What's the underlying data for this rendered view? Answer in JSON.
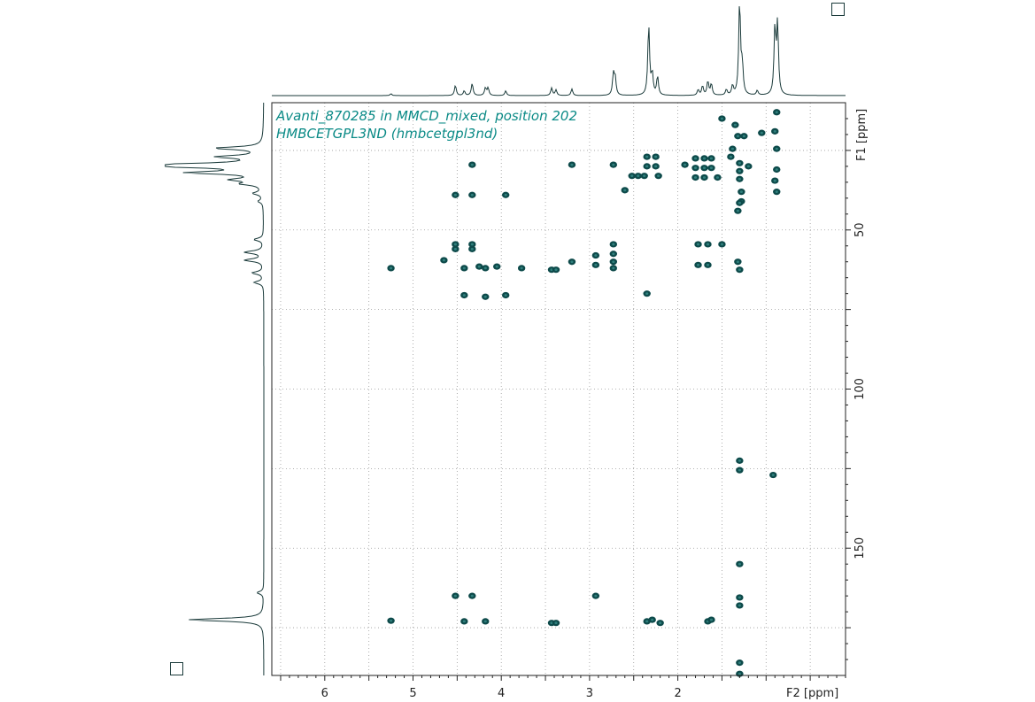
{
  "chart_data": {
    "type": "scatter",
    "subtype": "2D NMR HMBC contour plot",
    "title_lines": [
      "Avanti_870285 in MMCD_mixed, position 202",
      "HMBCETGPL3ND (hmbcetgpl3nd)"
    ],
    "x_axis": {
      "label": "F2 [ppm]",
      "range": [
        6.6,
        0.1
      ],
      "reversed": true,
      "tick_labels": [
        "6",
        "5",
        "4",
        "3",
        "2"
      ]
    },
    "y_axis": {
      "label": "F1 [ppm]",
      "range": [
        10,
        190
      ],
      "reversed": true,
      "position": "right",
      "tick_labels": [
        "50",
        "100",
        "150"
      ]
    },
    "grid": true,
    "colors": {
      "contour": "#0d4a4a",
      "projection": "#1a3a3a",
      "title": "#0a8a86",
      "grid": "#9a9a9a"
    },
    "projection_f2_peaks": [
      {
        "x": 5.25,
        "h": 0.02
      },
      {
        "x": 4.52,
        "h": 0.11
      },
      {
        "x": 4.42,
        "h": 0.05
      },
      {
        "x": 4.33,
        "h": 0.13
      },
      {
        "x": 4.18,
        "h": 0.08
      },
      {
        "x": 4.15,
        "h": 0.08
      },
      {
        "x": 3.95,
        "h": 0.05
      },
      {
        "x": 3.43,
        "h": 0.08
      },
      {
        "x": 3.38,
        "h": 0.06
      },
      {
        "x": 3.2,
        "h": 0.07
      },
      {
        "x": 2.73,
        "h": 0.22
      },
      {
        "x": 2.71,
        "h": 0.18
      },
      {
        "x": 2.33,
        "h": 0.75
      },
      {
        "x": 2.29,
        "h": 0.22
      },
      {
        "x": 2.23,
        "h": 0.2
      },
      {
        "x": 1.77,
        "h": 0.06
      },
      {
        "x": 1.72,
        "h": 0.1
      },
      {
        "x": 1.66,
        "h": 0.15
      },
      {
        "x": 1.62,
        "h": 0.12
      },
      {
        "x": 1.45,
        "h": 0.06
      },
      {
        "x": 1.38,
        "h": 0.1
      },
      {
        "x": 1.3,
        "h": 1.0
      },
      {
        "x": 1.27,
        "h": 0.3
      },
      {
        "x": 1.1,
        "h": 0.05
      },
      {
        "x": 0.9,
        "h": 0.7
      },
      {
        "x": 0.87,
        "h": 0.75
      }
    ],
    "projection_f1_peaks": [
      {
        "y": 24.3,
        "h": 0.5
      },
      {
        "y": 27.0,
        "h": 0.45
      },
      {
        "y": 29.5,
        "h": 0.9
      },
      {
        "y": 30.0,
        "h": 0.85
      },
      {
        "y": 32.0,
        "h": 0.75
      },
      {
        "y": 34.2,
        "h": 0.3
      },
      {
        "y": 35.5,
        "h": 0.2
      },
      {
        "y": 38.5,
        "h": 0.1
      },
      {
        "y": 41.0,
        "h": 0.05
      },
      {
        "y": 53.0,
        "h": 0.1
      },
      {
        "y": 57.0,
        "h": 0.2
      },
      {
        "y": 59.5,
        "h": 0.2
      },
      {
        "y": 63.5,
        "h": 0.12
      },
      {
        "y": 66.5,
        "h": 0.1
      },
      {
        "y": 172.5,
        "h": 0.8
      },
      {
        "y": 164.0,
        "h": 0.07
      }
    ],
    "cross_peaks": [
      {
        "x": 1.5,
        "y": 15.0
      },
      {
        "x": 1.35,
        "y": 17.0
      },
      {
        "x": 1.32,
        "y": 20.5
      },
      {
        "x": 1.25,
        "y": 20.5
      },
      {
        "x": 0.88,
        "y": 13.0
      },
      {
        "x": 1.05,
        "y": 19.5
      },
      {
        "x": 0.9,
        "y": 19.0
      },
      {
        "x": 2.35,
        "y": 27.0
      },
      {
        "x": 2.25,
        "y": 27.0
      },
      {
        "x": 2.35,
        "y": 30.0
      },
      {
        "x": 2.25,
        "y": 30.0
      },
      {
        "x": 2.45,
        "y": 33.0
      },
      {
        "x": 2.38,
        "y": 33.0
      },
      {
        "x": 2.22,
        "y": 33.0
      },
      {
        "x": 1.8,
        "y": 27.5
      },
      {
        "x": 1.7,
        "y": 27.5
      },
      {
        "x": 1.62,
        "y": 27.5
      },
      {
        "x": 1.8,
        "y": 30.5
      },
      {
        "x": 1.7,
        "y": 30.5
      },
      {
        "x": 1.62,
        "y": 30.5
      },
      {
        "x": 1.8,
        "y": 33.5
      },
      {
        "x": 1.7,
        "y": 33.5
      },
      {
        "x": 1.55,
        "y": 33.5
      },
      {
        "x": 1.4,
        "y": 27.0
      },
      {
        "x": 1.3,
        "y": 29.0
      },
      {
        "x": 1.2,
        "y": 30.0
      },
      {
        "x": 1.3,
        "y": 31.5
      },
      {
        "x": 1.38,
        "y": 24.5
      },
      {
        "x": 1.3,
        "y": 34.0
      },
      {
        "x": 1.28,
        "y": 38.0
      },
      {
        "x": 1.28,
        "y": 41.0
      },
      {
        "x": 0.88,
        "y": 24.5
      },
      {
        "x": 0.88,
        "y": 31.0
      },
      {
        "x": 0.9,
        "y": 34.5
      },
      {
        "x": 0.88,
        "y": 38.0
      },
      {
        "x": 3.2,
        "y": 29.5
      },
      {
        "x": 2.73,
        "y": 29.5
      },
      {
        "x": 4.33,
        "y": 29.5
      },
      {
        "x": 1.92,
        "y": 29.5
      },
      {
        "x": 2.52,
        "y": 33.0
      },
      {
        "x": 2.6,
        "y": 37.5
      },
      {
        "x": 1.32,
        "y": 44.0
      },
      {
        "x": 1.3,
        "y": 41.5
      },
      {
        "x": 4.52,
        "y": 39.0
      },
      {
        "x": 4.33,
        "y": 39.0
      },
      {
        "x": 3.95,
        "y": 39.0
      },
      {
        "x": 4.52,
        "y": 54.5
      },
      {
        "x": 4.33,
        "y": 54.5
      },
      {
        "x": 2.73,
        "y": 54.5
      },
      {
        "x": 4.52,
        "y": 56.0
      },
      {
        "x": 4.33,
        "y": 56.0
      },
      {
        "x": 2.73,
        "y": 57.5
      },
      {
        "x": 1.77,
        "y": 54.5
      },
      {
        "x": 1.66,
        "y": 54.5
      },
      {
        "x": 1.5,
        "y": 54.5
      },
      {
        "x": 1.77,
        "y": 61.0
      },
      {
        "x": 1.66,
        "y": 61.0
      },
      {
        "x": 1.32,
        "y": 60.0
      },
      {
        "x": 4.65,
        "y": 59.5
      },
      {
        "x": 4.42,
        "y": 62.0
      },
      {
        "x": 4.25,
        "y": 61.5
      },
      {
        "x": 4.18,
        "y": 62.0
      },
      {
        "x": 4.05,
        "y": 61.5
      },
      {
        "x": 3.77,
        "y": 62.0
      },
      {
        "x": 3.43,
        "y": 62.5
      },
      {
        "x": 3.38,
        "y": 62.5
      },
      {
        "x": 5.25,
        "y": 62.0
      },
      {
        "x": 2.93,
        "y": 58.0
      },
      {
        "x": 2.93,
        "y": 61.0
      },
      {
        "x": 3.2,
        "y": 60.0
      },
      {
        "x": 2.73,
        "y": 62.0
      },
      {
        "x": 2.73,
        "y": 60.0
      },
      {
        "x": 1.3,
        "y": 62.5
      },
      {
        "x": 4.42,
        "y": 70.5
      },
      {
        "x": 4.18,
        "y": 71.0
      },
      {
        "x": 3.95,
        "y": 70.5
      },
      {
        "x": 2.35,
        "y": 70.0
      },
      {
        "x": 1.3,
        "y": 122.5
      },
      {
        "x": 1.3,
        "y": 125.5
      },
      {
        "x": 0.92,
        "y": 127.0
      },
      {
        "x": 1.3,
        "y": 155.0
      },
      {
        "x": 4.52,
        "y": 165.0
      },
      {
        "x": 4.33,
        "y": 165.0
      },
      {
        "x": 2.93,
        "y": 165.0
      },
      {
        "x": 1.3,
        "y": 165.5
      },
      {
        "x": 5.25,
        "y": 172.8
      },
      {
        "x": 4.42,
        "y": 173.0
      },
      {
        "x": 4.18,
        "y": 173.0
      },
      {
        "x": 3.43,
        "y": 173.5
      },
      {
        "x": 3.38,
        "y": 173.5
      },
      {
        "x": 2.35,
        "y": 173.0
      },
      {
        "x": 2.29,
        "y": 172.5
      },
      {
        "x": 2.2,
        "y": 173.5
      },
      {
        "x": 1.66,
        "y": 173.0
      },
      {
        "x": 1.62,
        "y": 172.5
      },
      {
        "x": 1.3,
        "y": 168.0
      },
      {
        "x": 1.3,
        "y": 186.0
      },
      {
        "x": 1.3,
        "y": 189.5
      }
    ]
  }
}
